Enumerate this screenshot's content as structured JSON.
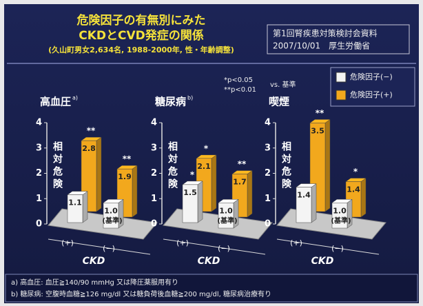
{
  "header": {
    "title_lines": [
      "危険因子の有無別にみた",
      "CKDとCVD発症の関係"
    ],
    "subtitle": "(久山町男女2,634名, 1988-2000年, 性・年齢調整)",
    "source_lines": [
      "第1回腎疾患対策検討会資料",
      "2007/10/01　厚生労働省"
    ]
  },
  "significance_note": {
    "lines": [
      "*p<0.05",
      "**p<0.01"
    ],
    "comparison": "vs. 基準"
  },
  "legend": [
    {
      "name": "危険因子(−)",
      "color": "#f4f4f4"
    },
    {
      "name": "危険因子(+)",
      "color": "#f2a81d"
    }
  ],
  "footnotes": [
    "a) 高血圧: 血圧≧140/90 mmHg 又は降圧薬服用有り",
    "b) 糖尿病: 空腹時血糖≧126 mg/dl 又は糖負荷後血糖≧200 mg/dl, 糖尿病治療有り"
  ],
  "chart_data": [
    {
      "type": "bar",
      "title": "高血圧",
      "title_note": "a)",
      "y_label": "相対危険",
      "x_label": "CKD",
      "categories": [
        "(+)",
        "(−)"
      ],
      "reference_label": "(基準)",
      "ylim": [
        0,
        4
      ],
      "yticks": [
        0,
        1,
        2,
        3,
        4
      ],
      "series": [
        {
          "color": "#f4f4f4",
          "values": [
            1.1,
            1.0
          ],
          "value_labels": [
            "1.1",
            "1.0"
          ],
          "significance": [
            null,
            null
          ]
        },
        {
          "color": "#f2a81d",
          "values": [
            2.8,
            1.9
          ],
          "value_labels": [
            "2.8",
            "1.9"
          ],
          "significance": [
            "**",
            "**"
          ]
        }
      ]
    },
    {
      "type": "bar",
      "title": "糖尿病",
      "title_note": "b)",
      "y_label": "相対危険",
      "x_label": "CKD",
      "categories": [
        "(+)",
        "(−)"
      ],
      "reference_label": "(基準)",
      "ylim": [
        0,
        4
      ],
      "yticks": [
        0,
        1,
        2,
        3,
        4
      ],
      "series": [
        {
          "color": "#f4f4f4",
          "values": [
            1.5,
            1.0
          ],
          "value_labels": [
            "1.5",
            "1.0"
          ],
          "significance": [
            "*",
            null
          ]
        },
        {
          "color": "#f2a81d",
          "values": [
            2.1,
            1.7
          ],
          "value_labels": [
            "2.1",
            "1.7"
          ],
          "significance": [
            "*",
            "**"
          ]
        }
      ]
    },
    {
      "type": "bar",
      "title": "喫煙",
      "y_label": "相対危険",
      "x_label": "CKD",
      "categories": [
        "(+)",
        "(−)"
      ],
      "reference_label": "(基準)",
      "ylim": [
        0,
        4
      ],
      "yticks": [
        0,
        1,
        2,
        3,
        4
      ],
      "series": [
        {
          "color": "#f4f4f4",
          "values": [
            1.4,
            1.0
          ],
          "value_labels": [
            "1.4",
            "1.0"
          ],
          "significance": [
            null,
            null
          ]
        },
        {
          "color": "#f2a81d",
          "values": [
            3.5,
            1.4
          ],
          "value_labels": [
            "3.5",
            "1.4"
          ],
          "significance": [
            "**",
            "*"
          ]
        }
      ]
    }
  ]
}
